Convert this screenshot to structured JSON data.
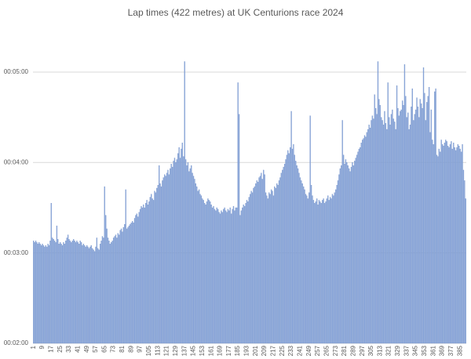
{
  "chart_data": {
    "type": "bar",
    "title": "Lap times (422 metres) at UK Centurions race 2024",
    "categories": [
      "1",
      null,
      null,
      null,
      null,
      null,
      null,
      null,
      "9",
      null,
      null,
      null,
      null,
      null,
      null,
      null,
      "17",
      null,
      null,
      null,
      null,
      null,
      null,
      null,
      "25",
      null,
      null,
      null,
      null,
      null,
      null,
      null,
      "33",
      null,
      null,
      null,
      null,
      null,
      null,
      null,
      "41",
      null,
      null,
      null,
      null,
      null,
      null,
      null,
      "49",
      null,
      null,
      null,
      null,
      null,
      null,
      null,
      "57",
      null,
      null,
      null,
      null,
      null,
      null,
      null,
      "65",
      null,
      null,
      null,
      null,
      null,
      null,
      null,
      "73",
      null,
      null,
      null,
      null,
      null,
      null,
      null,
      "81",
      null,
      null,
      null,
      null,
      null,
      null,
      null,
      "89",
      null,
      null,
      null,
      null,
      null,
      null,
      null,
      "97",
      null,
      null,
      null,
      null,
      null,
      null,
      null,
      "105",
      null,
      null,
      null,
      null,
      null,
      null,
      null,
      "113",
      null,
      null,
      null,
      null,
      null,
      null,
      null,
      "121",
      null,
      null,
      null,
      null,
      null,
      null,
      null,
      "129",
      null,
      null,
      null,
      null,
      null,
      null,
      null,
      "137",
      null,
      null,
      null,
      null,
      null,
      null,
      null,
      "145",
      null,
      null,
      null,
      null,
      null,
      null,
      null,
      "153",
      null,
      null,
      null,
      null,
      null,
      null,
      null,
      "161",
      null,
      null,
      null,
      null,
      null,
      null,
      null,
      "169",
      null,
      null,
      null,
      null,
      null,
      null,
      null,
      "177",
      null,
      null,
      null,
      null,
      null,
      null,
      null,
      "185",
      null,
      null,
      null,
      null,
      null,
      null,
      null,
      "193",
      null,
      null,
      null,
      null,
      null,
      null,
      null,
      "201",
      null,
      null,
      null,
      null,
      null,
      null,
      null,
      "209",
      null,
      null,
      null,
      null,
      null,
      null,
      null,
      "217",
      null,
      null,
      null,
      null,
      null,
      null,
      null,
      "225",
      null,
      null,
      null,
      null,
      null,
      null,
      null,
      "233",
      null,
      null,
      null,
      null,
      null,
      null,
      null,
      "241",
      null,
      null,
      null,
      null,
      null,
      null,
      null,
      "249",
      null,
      null,
      null,
      null,
      null,
      null,
      null,
      "257",
      null,
      null,
      null,
      null,
      null,
      null,
      null,
      "265",
      null,
      null,
      null,
      null,
      null,
      null,
      null,
      "273",
      null,
      null,
      null,
      null,
      null,
      null,
      null,
      "281",
      null,
      null,
      null,
      null,
      null,
      null,
      null,
      "289",
      null,
      null,
      null,
      null,
      null,
      null,
      null,
      "297",
      null,
      null,
      null,
      null,
      null,
      null,
      null,
      "305",
      null,
      null,
      null,
      null,
      null,
      null,
      null,
      "313",
      null,
      null,
      null,
      null,
      null,
      null,
      null,
      "321",
      null,
      null,
      null,
      null,
      null,
      null,
      null,
      "329",
      null,
      null,
      null,
      null,
      null,
      null,
      null,
      "337",
      null,
      null,
      null,
      null,
      null,
      null,
      null,
      "345",
      null,
      null,
      null,
      null,
      null,
      null,
      null,
      "353",
      null,
      null,
      null,
      null,
      null,
      null,
      null,
      "361",
      null,
      null,
      null,
      null,
      null,
      null,
      null,
      "369",
      null,
      null,
      null,
      null,
      null,
      null,
      null,
      "377",
      null,
      null,
      null,
      null,
      null,
      null,
      null,
      "385",
      null,
      null,
      null,
      null,
      null
    ],
    "values": [
      188,
      187,
      188,
      187,
      186,
      187,
      186,
      185,
      186,
      185,
      184,
      185,
      184,
      186,
      185,
      188,
      213,
      190,
      189,
      188,
      187,
      198,
      189,
      186,
      187,
      186,
      185,
      187,
      186,
      188,
      190,
      192,
      189,
      188,
      187,
      188,
      189,
      188,
      187,
      188,
      187,
      186,
      188,
      187,
      185,
      186,
      185,
      184,
      185,
      184,
      183,
      184,
      185,
      183,
      182,
      181,
      184,
      190,
      183,
      182,
      186,
      188,
      191,
      190,
      224,
      205,
      196,
      190,
      188,
      186,
      187,
      188,
      190,
      191,
      192,
      190,
      193,
      192,
      195,
      196,
      194,
      197,
      199,
      222,
      196,
      197,
      198,
      199,
      200,
      201,
      200,
      203,
      205,
      206,
      204,
      207,
      209,
      211,
      210,
      212,
      210,
      213,
      215,
      212,
      214,
      217,
      219,
      216,
      215,
      221,
      220,
      223,
      225,
      238,
      226,
      224,
      228,
      230,
      232,
      231,
      233,
      235,
      232,
      236,
      239,
      237,
      241,
      243,
      240,
      242,
      246,
      250,
      243,
      249,
      253,
      244,
      307,
      242,
      238,
      240,
      234,
      236,
      238,
      233,
      231,
      229,
      226,
      224,
      221,
      222,
      219,
      218,
      216,
      215,
      213,
      212,
      214,
      216,
      215,
      214,
      212,
      210,
      211,
      209,
      208,
      210,
      209,
      207,
      206,
      208,
      207,
      209,
      210,
      208,
      207,
      209,
      208,
      210,
      206,
      209,
      211,
      208,
      210,
      210,
      293,
      272,
      205,
      208,
      210,
      212,
      211,
      213,
      215,
      214,
      217,
      219,
      221,
      220,
      223,
      224,
      226,
      228,
      227,
      230,
      231,
      233,
      229,
      235,
      232,
      220,
      218,
      216,
      220,
      219,
      222,
      221,
      218,
      224,
      223,
      226,
      225,
      228,
      230,
      233,
      235,
      237,
      239,
      242,
      245,
      248,
      246,
      250,
      274,
      249,
      252,
      245,
      241,
      238,
      236,
      233,
      230,
      228,
      226,
      224,
      222,
      219,
      218,
      216,
      220,
      271,
      225,
      218,
      215,
      213,
      214,
      216,
      212,
      215,
      214,
      213,
      215,
      216,
      213,
      214,
      216,
      218,
      215,
      217,
      216,
      219,
      218,
      220,
      222,
      225,
      228,
      232,
      236,
      238,
      268,
      245,
      239,
      242,
      240,
      238,
      236,
      234,
      237,
      240,
      238,
      241,
      243,
      245,
      247,
      249,
      250,
      253,
      255,
      256,
      258,
      257,
      260,
      262,
      265,
      263,
      268,
      271,
      269,
      285,
      276,
      272,
      307,
      282,
      278,
      270,
      268,
      265,
      274,
      266,
      262,
      293,
      270,
      265,
      272,
      275,
      269,
      267,
      262,
      291,
      276,
      271,
      274,
      275,
      281,
      278,
      305,
      284,
      270,
      273,
      262,
      265,
      277,
      289,
      268,
      272,
      275,
      283,
      277,
      270,
      282,
      279,
      276,
      303,
      286,
      268,
      280,
      284,
      290,
      260,
      275,
      255,
      252,
      287,
      289,
      245,
      244,
      249,
      247,
      255,
      252,
      251,
      253,
      255,
      254,
      251,
      250,
      252,
      254,
      249,
      253,
      250,
      248,
      250,
      252,
      251,
      249,
      247,
      252,
      235,
      228,
      216
    ],
    "color": "#8faadc",
    "ylim": [
      120,
      320
    ],
    "yticks": [
      {
        "value": 120,
        "label": "00:02:00"
      },
      {
        "value": 180,
        "label": "00:03:00"
      },
      {
        "value": 240,
        "label": "00:04:00"
      },
      {
        "value": 300,
        "label": "00:05:00"
      }
    ],
    "grid": true
  }
}
